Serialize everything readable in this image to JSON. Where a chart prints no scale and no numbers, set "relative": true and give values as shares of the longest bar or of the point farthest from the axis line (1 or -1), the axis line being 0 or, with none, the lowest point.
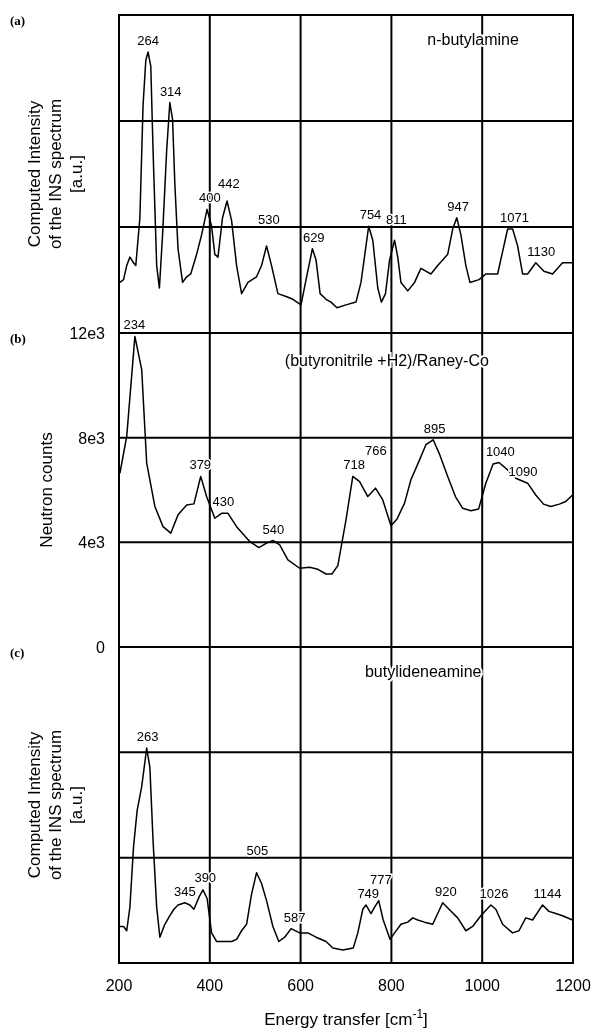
{
  "chart_data": [
    {
      "type": "line",
      "ylabel": "Computed Intensity\nof the INS spectrum\n[a.u.]",
      "relative": true,
      "tick_labels": false,
      "grid": true,
      "xlim": [
        200,
        1200
      ],
      "xticks": [
        200,
        400,
        600,
        800,
        1000,
        1200
      ],
      "x": [
        202,
        210,
        217,
        224,
        232,
        237,
        246,
        253,
        259,
        264,
        270,
        275,
        283,
        289,
        296,
        305,
        312,
        318,
        323,
        330,
        340,
        349,
        358,
        371,
        382,
        394,
        404,
        411,
        418,
        428,
        438,
        448,
        459,
        470,
        484,
        503,
        514,
        525,
        536,
        550,
        568,
        583,
        601,
        612,
        626,
        634,
        643,
        656,
        667,
        680,
        700,
        722,
        733,
        750,
        759,
        770,
        778,
        787,
        796,
        807,
        814,
        821,
        836,
        851,
        865,
        887,
        902,
        913,
        924,
        935,
        944,
        953,
        964,
        973,
        993,
        1008,
        1034,
        1056,
        1067,
        1078,
        1089,
        1100,
        1118,
        1136,
        1155,
        1177,
        1199
      ],
      "series": [
        {
          "name": "n-butylamine",
          "color": "#000000",
          "values": [
            0.18,
            0.19,
            0.24,
            0.27,
            0.25,
            0.24,
            0.41,
            0.81,
            0.97,
            1,
            0.95,
            0.65,
            0.24,
            0.16,
            0.35,
            0.65,
            0.82,
            0.76,
            0.53,
            0.3,
            0.18,
            0.2,
            0.21,
            0.28,
            0.35,
            0.44,
            0.38,
            0.28,
            0.27,
            0.41,
            0.47,
            0.4,
            0.24,
            0.14,
            0.18,
            0.2,
            0.24,
            0.31,
            0.24,
            0.14,
            0.13,
            0.12,
            0.1,
            0.19,
            0.3,
            0.26,
            0.14,
            0.12,
            0.11,
            0.09,
            0.1,
            0.11,
            0.18,
            0.38,
            0.33,
            0.16,
            0.11,
            0.14,
            0.26,
            0.33,
            0.27,
            0.18,
            0.15,
            0.18,
            0.23,
            0.21,
            0.24,
            0.26,
            0.28,
            0.37,
            0.41,
            0.35,
            0.24,
            0.18,
            0.19,
            0.21,
            0.21,
            0.37,
            0.37,
            0.31,
            0.21,
            0.21,
            0.25,
            0.22,
            0.21,
            0.25,
            0.25
          ]
        }
      ],
      "annotations": [
        "(a)",
        {
          "text": "264",
          "x": 264,
          "y": 1
        },
        {
          "text": "314",
          "x": 314,
          "y": 0.82
        },
        {
          "text": "400",
          "x": 400,
          "y": 0.44
        },
        {
          "text": "442",
          "x": 442,
          "y": 0.47
        },
        {
          "text": "530",
          "x": 530,
          "y": 0.31
        },
        {
          "text": "629",
          "x": 629,
          "y": 0.3
        },
        {
          "text": "754",
          "x": 754,
          "y": 0.38
        },
        {
          "text": "811",
          "x": 811,
          "y": 0.33
        },
        {
          "text": "947",
          "x": 947,
          "y": 0.41
        },
        {
          "text": "1071",
          "x": 1071,
          "y": 0.37
        },
        {
          "text": "1130",
          "x": 1130,
          "y": 0.25
        }
      ]
    },
    {
      "type": "line",
      "ylabel": "Neutron counts",
      "tick_labels": "y",
      "grid": true,
      "xlim": [
        200,
        1200
      ],
      "xticks": [
        200,
        400,
        600,
        800,
        1000,
        1200
      ],
      "ylim": [
        0,
        12000
      ],
      "yticks": [
        {
          "value": 0,
          "label": "0"
        },
        {
          "value": 4000,
          "label": "4e3"
        },
        {
          "value": 8000,
          "label": "8e3"
        },
        {
          "value": 12000,
          "label": "12e3"
        }
      ],
      "x": [
        202,
        217,
        235,
        250,
        261,
        279,
        297,
        314,
        330,
        349,
        365,
        380,
        393,
        411,
        426,
        440,
        459,
        488,
        508,
        525,
        539,
        554,
        572,
        598,
        620,
        638,
        656,
        669,
        682,
        700,
        715,
        730,
        748,
        765,
        781,
        799,
        812,
        829,
        843,
        862,
        876,
        892,
        905,
        924,
        941,
        957,
        975,
        992,
        1008,
        1024,
        1037,
        1056,
        1074,
        1100,
        1118,
        1135,
        1151,
        1170,
        1184,
        1199
      ],
      "series": [
        {
          "name": "(butyronitrile +H2)/Raney-Co",
          "color": "#000000",
          "values": [
            6640,
            8050,
            11870,
            10600,
            7030,
            5370,
            4600,
            4350,
            5050,
            5430,
            5470,
            6520,
            5750,
            4920,
            5110,
            5110,
            4600,
            4030,
            3800,
            3970,
            4070,
            3900,
            3330,
            3010,
            3050,
            2970,
            2790,
            2790,
            3110,
            4860,
            6520,
            6320,
            5750,
            6070,
            5620,
            4630,
            4880,
            5500,
            6390,
            7150,
            7730,
            7920,
            7410,
            6520,
            5750,
            5300,
            5210,
            5270,
            6260,
            6990,
            7050,
            6770,
            6450,
            6260,
            5810,
            5460,
            5370,
            5460,
            5560,
            5810
          ]
        }
      ],
      "annotations": [
        "(b)",
        {
          "text": "234",
          "x": 234,
          "y": 11870
        },
        {
          "text": "379",
          "x": 379,
          "y": 6520
        },
        {
          "text": "430",
          "x": 430,
          "y": 5110
        },
        {
          "text": "540",
          "x": 540,
          "y": 4070
        },
        {
          "text": "718",
          "x": 718,
          "y": 6520
        },
        {
          "text": "766",
          "x": 766,
          "y": 6070
        },
        {
          "text": "895",
          "x": 895,
          "y": 7920
        },
        {
          "text": "1040",
          "x": 1040,
          "y": 7050
        },
        {
          "text": "1090",
          "x": 1090,
          "y": 6260
        }
      ]
    },
    {
      "type": "line",
      "ylabel": "Computed Intensity\nof the INS spectrum\n[a.u.]",
      "xlabel": "Energy transfer [cm$^{-1}$]",
      "relative": true,
      "tick_labels": "x",
      "grid": true,
      "xlim": [
        200,
        1200
      ],
      "xticks": [
        200,
        400,
        600,
        800,
        1000,
        1200
      ],
      "x": [
        202,
        210,
        217,
        224,
        232,
        240,
        250,
        261,
        268,
        275,
        283,
        290,
        301,
        312,
        321,
        330,
        345,
        356,
        365,
        377,
        385,
        394,
        404,
        415,
        429,
        448,
        459,
        470,
        481,
        492,
        503,
        514,
        525,
        539,
        552,
        565,
        579,
        598,
        616,
        634,
        656,
        671,
        693,
        716,
        726,
        737,
        744,
        755,
        763,
        772,
        782,
        797,
        807,
        821,
        836,
        847,
        858,
        873,
        891,
        902,
        913,
        927,
        946,
        964,
        979,
        997,
        1019,
        1030,
        1045,
        1067,
        1081,
        1096,
        1111,
        1133,
        1147,
        1162,
        1177,
        1199
      ],
      "series": [
        {
          "name": "butylideneamine",
          "color": "#000000",
          "values": [
            0.17,
            0.17,
            0.15,
            0.26,
            0.54,
            0.71,
            0.82,
            1,
            0.91,
            0.57,
            0.26,
            0.12,
            0.18,
            0.22,
            0.25,
            0.27,
            0.28,
            0.27,
            0.25,
            0.31,
            0.34,
            0.3,
            0.14,
            0.1,
            0.1,
            0.1,
            0.11,
            0.15,
            0.18,
            0.32,
            0.42,
            0.37,
            0.29,
            0.17,
            0.1,
            0.12,
            0.16,
            0.14,
            0.14,
            0.12,
            0.1,
            0.07,
            0.06,
            0.07,
            0.14,
            0.25,
            0.27,
            0.23,
            0.26,
            0.29,
            0.2,
            0.11,
            0.14,
            0.18,
            0.19,
            0.21,
            0.2,
            0.19,
            0.18,
            0.23,
            0.28,
            0.25,
            0.21,
            0.15,
            0.17,
            0.22,
            0.27,
            0.25,
            0.18,
            0.14,
            0.15,
            0.21,
            0.2,
            0.27,
            0.24,
            0.23,
            0.22,
            0.2
          ]
        }
      ],
      "annotations": [
        "(c)",
        {
          "text": "263",
          "x": 263,
          "y": 1
        },
        {
          "text": "345",
          "x": 345,
          "y": 0.28
        },
        {
          "text": "390",
          "x": 390,
          "y": 0.34
        },
        {
          "text": "505",
          "x": 505,
          "y": 0.42
        },
        {
          "text": "587",
          "x": 587,
          "y": 0.16
        },
        {
          "text": "749",
          "x": 749,
          "y": 0.27
        },
        {
          "text": "777",
          "x": 777,
          "y": 0.29
        },
        {
          "text": "920",
          "x": 920,
          "y": 0.28
        },
        {
          "text": "1026",
          "x": 1026,
          "y": 0.27
        },
        {
          "text": "1144",
          "x": 1144,
          "y": 0.27
        }
      ]
    }
  ]
}
